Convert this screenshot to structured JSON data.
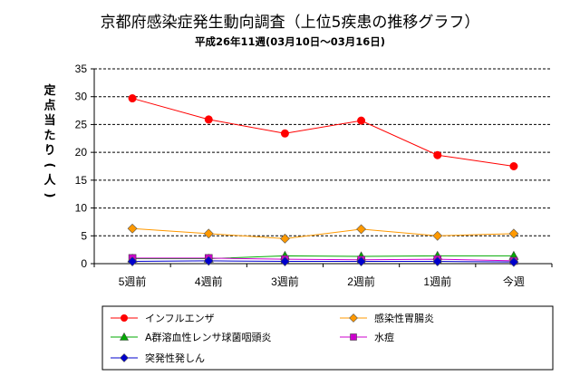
{
  "chart_data": {
    "type": "line",
    "title": "京都府感染症発生動向調査（上位5疾患の推移グラフ）",
    "subtitle": "平成26年11週(03月10日～03月16日)",
    "ylabel": "定点当たり(人)",
    "xlabel": "",
    "ylim": [
      0,
      35
    ],
    "yticks": [
      0,
      5,
      10,
      15,
      20,
      25,
      30,
      35
    ],
    "grid": true,
    "legend_position": "bottom",
    "categories": [
      "5週前",
      "4週前",
      "3週前",
      "2週前",
      "1週前",
      "今週"
    ],
    "series": [
      {
        "name": "インフルエンザ",
        "color": "#ff0000",
        "marker": "circle",
        "values": [
          29.7,
          25.9,
          23.4,
          25.7,
          19.5,
          17.5
        ]
      },
      {
        "name": "感染性胃腸炎",
        "color": "#ff9900",
        "marker": "diamond",
        "values": [
          6.3,
          5.4,
          4.5,
          6.2,
          5.0,
          5.4
        ]
      },
      {
        "name": "A群溶血性レンサ球菌咽頭炎",
        "color": "#00aa00",
        "marker": "triangle",
        "values": [
          0.9,
          0.9,
          1.4,
          1.3,
          1.4,
          1.4
        ]
      },
      {
        "name": "水痘",
        "color": "#cc00cc",
        "marker": "square",
        "values": [
          1.0,
          1.0,
          0.8,
          0.7,
          0.8,
          0.5
        ]
      },
      {
        "name": "突発性発しん",
        "color": "#0000cc",
        "marker": "diamond",
        "values": [
          0.4,
          0.5,
          0.4,
          0.4,
          0.4,
          0.3
        ]
      }
    ]
  }
}
